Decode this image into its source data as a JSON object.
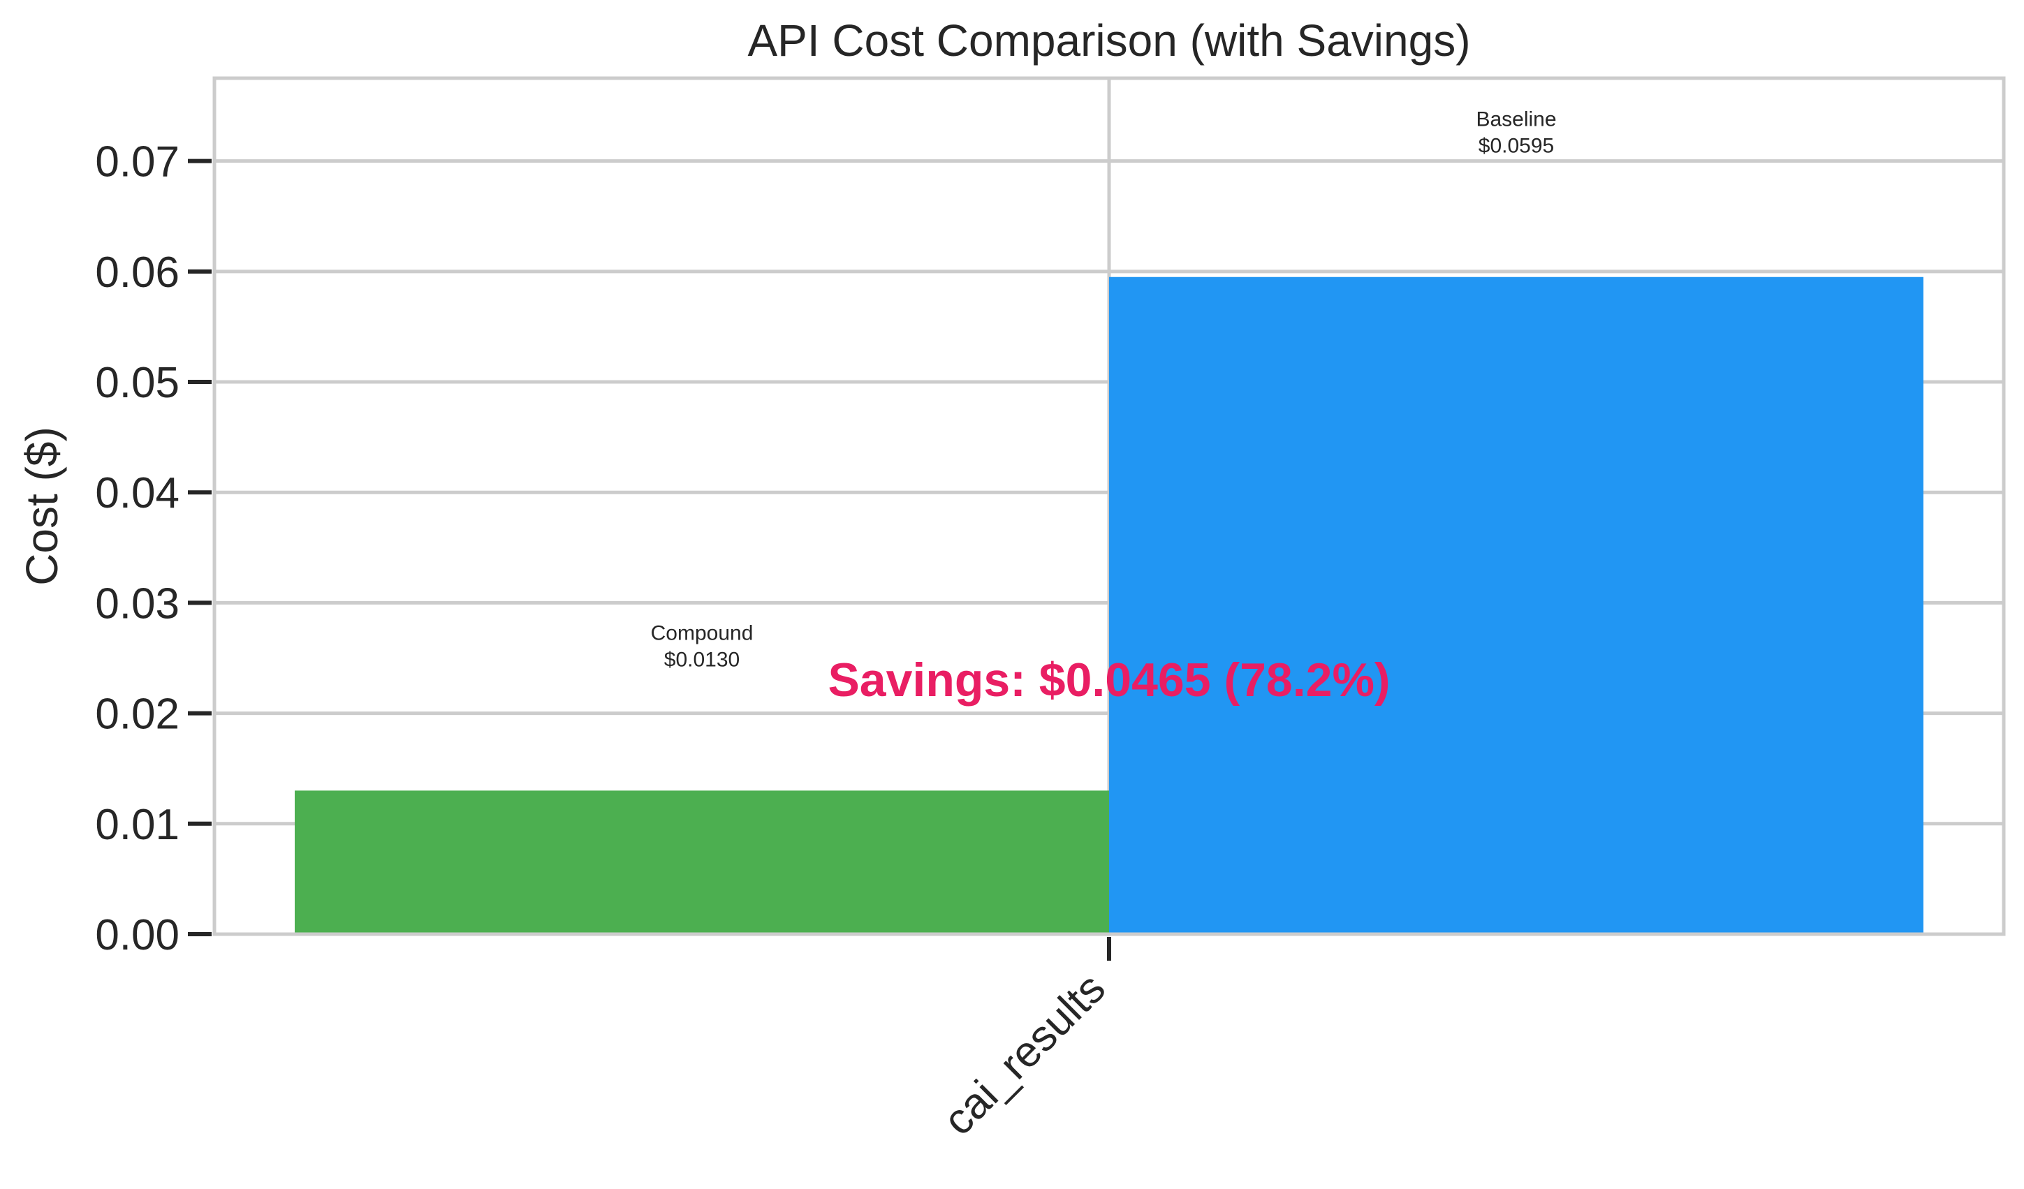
{
  "chart_data": {
    "type": "bar",
    "title": "API Cost Comparison (with Savings)",
    "xlabel": "",
    "ylabel": "Cost ($)",
    "categories": [
      "cai_results"
    ],
    "series": [
      {
        "name": "Compound",
        "values": [
          0.013
        ],
        "color": "#4caf50",
        "label_lines": [
          "Compound",
          "$0.0130"
        ]
      },
      {
        "name": "Baseline",
        "values": [
          0.0595
        ],
        "color": "#2196f3",
        "label_lines": [
          "Baseline",
          "$0.0595"
        ]
      }
    ],
    "ylim": [
      0,
      0.0775
    ],
    "yticks": [
      "0.00",
      "0.01",
      "0.02",
      "0.03",
      "0.04",
      "0.05",
      "0.06",
      "0.07"
    ],
    "grid": true,
    "legend": "none",
    "annotation": {
      "text": "Savings: $0.0465 (78.2%)",
      "color": "#e91e63",
      "savings": 0.0465,
      "savings_percent": 78.2
    }
  }
}
